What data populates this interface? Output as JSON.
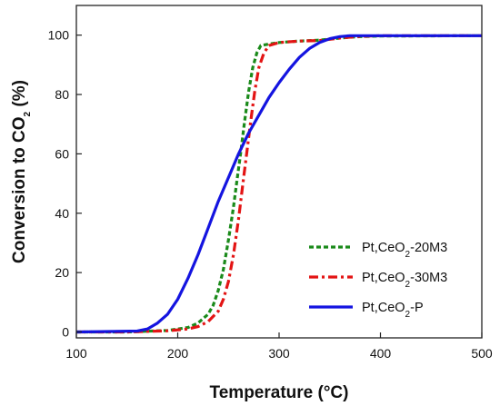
{
  "chart_data": {
    "type": "line",
    "xlabel": "Temperature (°C)",
    "ylabel": {
      "pre": "Conversion to CO",
      "sub": "2",
      "post": " (%)"
    },
    "xlim": [
      100,
      500
    ],
    "ylim": [
      -2,
      110
    ],
    "xticks": [
      100,
      200,
      300,
      400,
      500
    ],
    "yticks": [
      0,
      20,
      40,
      60,
      80,
      100
    ],
    "grid": false,
    "legend_position": "bottom-right",
    "series": [
      {
        "name": "Pt,CeO2-20M3",
        "legend": {
          "pre": "Pt,CeO",
          "sub": "2",
          "post": "-20M3"
        },
        "color": "#1a8a1a",
        "dash": "dotted",
        "x": [
          100,
          150,
          190,
          210,
          220,
          230,
          235,
          240,
          245,
          250,
          255,
          258,
          262,
          266,
          270,
          274,
          278,
          282,
          290,
          300,
          320,
          340,
          360,
          380,
          400,
          500
        ],
        "y": [
          0,
          0,
          0.5,
          1.5,
          3,
          6,
          9,
          14,
          21,
          31,
          42,
          50,
          60,
          71,
          81,
          89,
          94,
          96.5,
          97,
          97.5,
          98,
          98.3,
          99,
          99.5,
          99.7,
          99.8
        ]
      },
      {
        "name": "Pt,CeO2-30M3",
        "legend": {
          "pre": "Pt,CeO",
          "sub": "2",
          "post": "-30M3"
        },
        "color": "#e31414",
        "dash": "dashdot",
        "x": [
          100,
          150,
          190,
          210,
          220,
          230,
          240,
          245,
          250,
          255,
          260,
          265,
          268,
          272,
          276,
          280,
          285,
          290,
          300,
          320,
          340,
          360,
          380,
          400,
          500
        ],
        "y": [
          0,
          0,
          0.4,
          1,
          1.8,
          3.5,
          7,
          11,
          17,
          26,
          38,
          52,
          60,
          71,
          81,
          89,
          94,
          96.5,
          97.5,
          98,
          98.2,
          99,
          99.6,
          99.8,
          99.8
        ]
      },
      {
        "name": "Pt,CeO2-P",
        "legend": {
          "pre": "Pt,CeO",
          "sub": "2",
          "post": "-P"
        },
        "color": "#1414e0",
        "dash": "solid",
        "x": [
          100,
          160,
          170,
          180,
          190,
          200,
          210,
          220,
          230,
          240,
          250,
          260,
          270,
          280,
          290,
          300,
          310,
          320,
          330,
          340,
          350,
          360,
          370,
          380,
          400,
          500
        ],
        "y": [
          0,
          0.3,
          1,
          3,
          6,
          11,
          18,
          26,
          35,
          44,
          52,
          60,
          67,
          73,
          79,
          84,
          88.5,
          92.5,
          95.5,
          97.5,
          98.8,
          99.5,
          99.8,
          99.8,
          99.8,
          99.8
        ]
      }
    ]
  }
}
